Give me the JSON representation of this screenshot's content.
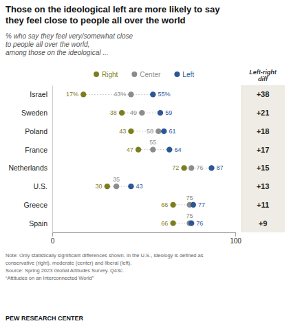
{
  "chart_data": {
    "type": "dot",
    "title": "Those on the ideological left are more likely to say\nthey feel close to people all over the world",
    "subtitle": [
      "% who say they feel very/somewhat close",
      "to people all over the world,",
      "among those on the ideological ..."
    ],
    "categories": [
      "Israel",
      "Sweden",
      "Poland",
      "France",
      "Netherlands",
      "U.S.",
      "Greece",
      "Spain"
    ],
    "orientation": "horizontal",
    "series": [
      {
        "name": "Right",
        "color": "#7d7d1e",
        "values": [
          17,
          38,
          43,
          47,
          72,
          30,
          66,
          66
        ],
        "value_labels": [
          "17%",
          "38",
          "43",
          "47",
          "72",
          "30",
          "66",
          "66"
        ]
      },
      {
        "name": "Center",
        "color": "#8c8c8c",
        "values": [
          43,
          49,
          58,
          55,
          76,
          35,
          75,
          75
        ],
        "value_labels": [
          "43%",
          "49",
          "58",
          "55",
          "76",
          "35",
          "75",
          "75"
        ]
      },
      {
        "name": "Left",
        "color": "#2b5797",
        "values": [
          55,
          59,
          61,
          64,
          87,
          43,
          77,
          76
        ],
        "value_labels": [
          "55%",
          "59",
          "61",
          "64",
          "87",
          "43",
          "77",
          "76"
        ]
      }
    ],
    "xlim": [
      0,
      100
    ],
    "xticks": [
      0,
      100
    ],
    "grid": false,
    "legend": "top",
    "data_labels": true,
    "diffs": {
      "title": "Left-right\ndiff",
      "labels": [
        "+38",
        "+21",
        "+18",
        "+17",
        "+15",
        "+13",
        "+11",
        "+9"
      ],
      "color": "#eeece4"
    },
    "notes": [
      "Note: Only statistically significant differences shown. In the U.S., ideology is defined as",
      "conservative (right), moderate (center) and liberal (left).",
      "Source: Spring 2023 Global Attitudes Survey. Q43c.",
      "“Attitudes on an Interconnected World”"
    ],
    "footer": "PEW RESEARCH CENTER"
  }
}
